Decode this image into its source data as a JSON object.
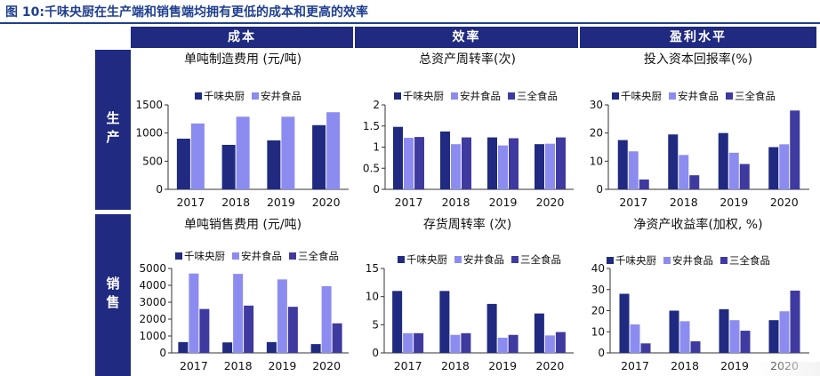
{
  "figure_title": "图 10:千味央厨在生产端和销售端均拥有更低的成本和更高的效率",
  "col_headers": [
    "成本",
    "效率",
    "盈利水平"
  ],
  "row_headers": [
    "生产",
    "销售"
  ],
  "colors": {
    "qianwei": "#1f2a80",
    "anjing": "#8c8cf0",
    "sanquan": "#3f3aa0",
    "header": "#1f2a80"
  },
  "chart_data": [
    {
      "type": "bar",
      "title": "单吨制造费用 (元/吨)",
      "categories": [
        "2017",
        "2018",
        "2019",
        "2020"
      ],
      "yticks": [
        "0",
        "500",
        "1000",
        "1500"
      ],
      "ylim": [
        0,
        1500
      ],
      "series": [
        {
          "name": "千味央厨",
          "values": [
            900,
            790,
            870,
            1140
          ]
        },
        {
          "name": "安井食品",
          "values": [
            1170,
            1290,
            1290,
            1370
          ]
        }
      ]
    },
    {
      "type": "bar",
      "title": "总资产周转率(次)",
      "categories": [
        "2017",
        "2018",
        "2019",
        "2020"
      ],
      "yticks": [
        "0",
        "0.5",
        "1",
        "1.5",
        "2"
      ],
      "ylim": [
        0,
        2
      ],
      "series": [
        {
          "name": "千味央厨",
          "values": [
            1.48,
            1.37,
            1.23,
            1.07
          ]
        },
        {
          "name": "安井食品",
          "values": [
            1.22,
            1.07,
            1.04,
            1.08
          ]
        },
        {
          "name": "三全食品",
          "values": [
            1.24,
            1.23,
            1.21,
            1.23
          ]
        }
      ]
    },
    {
      "type": "bar",
      "title": "投入资本回报率(%)",
      "categories": [
        "2017",
        "2018",
        "2019",
        "2020"
      ],
      "yticks": [
        "0",
        "10",
        "20",
        "30"
      ],
      "ylim": [
        0,
        30
      ],
      "series": [
        {
          "name": "千味央厨",
          "values": [
            17.5,
            19.5,
            20,
            15
          ]
        },
        {
          "name": "安井食品",
          "values": [
            13.5,
            12.2,
            13,
            16
          ]
        },
        {
          "name": "三全食品",
          "values": [
            3.5,
            5,
            9,
            28
          ]
        }
      ]
    },
    {
      "type": "bar",
      "title": "单吨销售费用 (元/吨)",
      "categories": [
        "2017",
        "2018",
        "2019",
        "2020"
      ],
      "yticks": [
        "0",
        "1000",
        "2000",
        "3000",
        "4000",
        "5000"
      ],
      "ylim": [
        0,
        5000
      ],
      "series": [
        {
          "name": "千味央厨",
          "values": [
            640,
            620,
            640,
            520
          ]
        },
        {
          "name": "安井食品",
          "values": [
            4700,
            4680,
            4350,
            3950
          ]
        },
        {
          "name": "三全食品",
          "values": [
            2600,
            2800,
            2730,
            1750
          ]
        }
      ]
    },
    {
      "type": "bar",
      "title": "存货周转率 (次)",
      "categories": [
        "2017",
        "2018",
        "2019",
        "2020"
      ],
      "yticks": [
        "0",
        "5",
        "10",
        "15"
      ],
      "ylim": [
        0,
        15
      ],
      "series": [
        {
          "name": "千味央厨",
          "values": [
            11,
            11,
            8.7,
            7
          ]
        },
        {
          "name": "安井食品",
          "values": [
            3.5,
            3.2,
            2.7,
            3.1
          ]
        },
        {
          "name": "三全食品",
          "values": [
            3.5,
            3.5,
            3.2,
            3.7
          ]
        }
      ]
    },
    {
      "type": "bar",
      "title": "净资产收益率(加权, %)",
      "categories": [
        "2017",
        "2018",
        "2019",
        "2020"
      ],
      "yticks": [
        "0",
        "10",
        "20",
        "30",
        "40"
      ],
      "ylim": [
        0,
        40
      ],
      "series": [
        {
          "name": "千味央厨",
          "values": [
            28,
            20,
            20.7,
            15.5
          ]
        },
        {
          "name": "安井食品",
          "values": [
            13.5,
            15,
            15.5,
            19.7
          ]
        },
        {
          "name": "三全食品",
          "values": [
            4.5,
            5.5,
            10.5,
            29.5
          ]
        }
      ]
    }
  ]
}
